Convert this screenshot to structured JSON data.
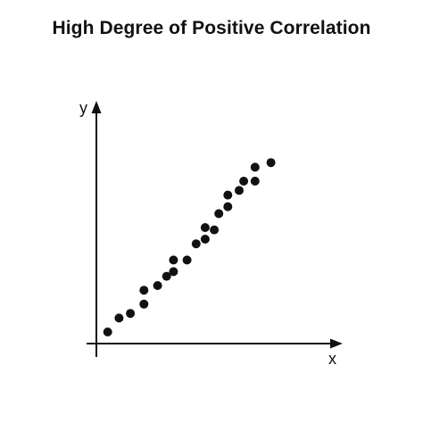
{
  "chart_data": {
    "type": "scatter",
    "title": "High Degree of Positive Correlation",
    "xlabel": "x",
    "ylabel": "y",
    "grid": false,
    "ticks": false,
    "point_color": "#111111",
    "xlim": [
      0,
      10
    ],
    "ylim": [
      0,
      10
    ],
    "points": [
      {
        "x": 0.5,
        "y": 0.5
      },
      {
        "x": 1.0,
        "y": 1.1
      },
      {
        "x": 1.5,
        "y": 1.3
      },
      {
        "x": 2.1,
        "y": 1.7
      },
      {
        "x": 2.1,
        "y": 2.3
      },
      {
        "x": 2.7,
        "y": 2.5
      },
      {
        "x": 3.1,
        "y": 2.9
      },
      {
        "x": 3.4,
        "y": 3.1
      },
      {
        "x": 3.4,
        "y": 3.6
      },
      {
        "x": 4.0,
        "y": 3.6
      },
      {
        "x": 4.4,
        "y": 4.3
      },
      {
        "x": 4.8,
        "y": 4.5
      },
      {
        "x": 4.8,
        "y": 5.0
      },
      {
        "x": 5.2,
        "y": 4.9
      },
      {
        "x": 5.4,
        "y": 5.6
      },
      {
        "x": 5.8,
        "y": 5.9
      },
      {
        "x": 5.8,
        "y": 6.4
      },
      {
        "x": 6.3,
        "y": 6.6
      },
      {
        "x": 6.5,
        "y": 7.0
      },
      {
        "x": 7.0,
        "y": 7.0
      },
      {
        "x": 7.0,
        "y": 7.6
      },
      {
        "x": 7.7,
        "y": 7.8
      }
    ]
  }
}
